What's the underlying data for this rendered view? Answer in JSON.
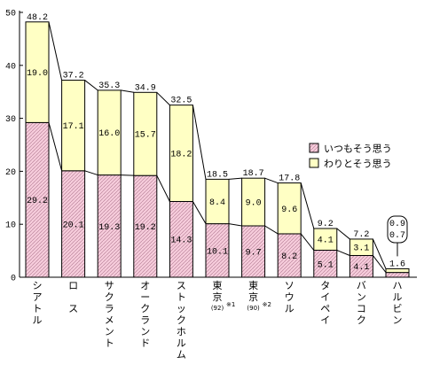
{
  "chart_data": {
    "type": "bar",
    "stacked": true,
    "ylim": [
      0,
      50
    ],
    "yticks": [
      0,
      10,
      20,
      30,
      40,
      50
    ],
    "grid": false,
    "legend": "right",
    "categories": [
      {
        "chars": [
          "シ",
          "ア",
          "ト",
          "ル"
        ],
        "sub": null,
        "sup": null
      },
      {
        "chars": [
          "ロ",
          "",
          "ス"
        ],
        "sub": null,
        "sup": null
      },
      {
        "chars": [
          "サ",
          "ク",
          "ラ",
          "メ",
          "ン",
          "ト"
        ],
        "sub": null,
        "sup": null
      },
      {
        "chars": [
          "オ",
          "ー",
          "ク",
          "ラ",
          "ン",
          "ド"
        ],
        "sub": null,
        "sup": null
      },
      {
        "chars": [
          "ス",
          "ト",
          "ッ",
          "ク",
          "ホ",
          "ル",
          "ム"
        ],
        "sub": null,
        "sup": null
      },
      {
        "chars": [
          "東",
          "京"
        ],
        "sub": "(92)",
        "sup": "※1"
      },
      {
        "chars": [
          "東",
          "京"
        ],
        "sub": "(90)",
        "sup": "※2"
      },
      {
        "chars": [
          "ソ",
          "ウ",
          "ル"
        ],
        "sub": null,
        "sup": null
      },
      {
        "chars": [
          "タ",
          "イ",
          "ペ",
          "イ"
        ],
        "sub": null,
        "sup": null
      },
      {
        "chars": [
          "バ",
          "ン",
          "コ",
          "ク"
        ],
        "sub": null,
        "sup": null
      },
      {
        "chars": [
          "ハ",
          "ル",
          "ビ",
          "ン"
        ],
        "sub": null,
        "sup": null
      }
    ],
    "series": [
      {
        "name": "いつもそう思う",
        "color": "#f4c6d6",
        "values": [
          29.2,
          20.1,
          19.3,
          19.2,
          14.3,
          10.1,
          9.7,
          8.2,
          5.1,
          4.1,
          0.9
        ]
      },
      {
        "name": "わりとそう思う",
        "color": "#ffffc4",
        "values": [
          19.0,
          17.1,
          16.0,
          15.7,
          18.2,
          8.4,
          9.0,
          9.6,
          4.1,
          3.1,
          0.7
        ]
      }
    ],
    "totals": [
      48.2,
      37.2,
      35.3,
      34.9,
      32.5,
      18.5,
      18.7,
      17.8,
      9.2,
      7.2,
      1.6
    ],
    "value_labels": [
      [
        "29.2",
        "20.1",
        "19.3",
        "19.2",
        "14.3",
        "10.1",
        "9.7",
        "8.2",
        "5.1",
        "4.1",
        "0.9"
      ],
      [
        "19.0",
        "17.1",
        "16.0",
        "15.7",
        "18.2",
        "8.4",
        "9.0",
        "9.6",
        "4.1",
        "3.1",
        "0.7"
      ]
    ],
    "total_labels": [
      "48.2",
      "37.2",
      "35.3",
      "34.9",
      "32.5",
      "18.5",
      "18.7",
      "17.8",
      "9.2",
      "7.2",
      "1.6"
    ]
  }
}
